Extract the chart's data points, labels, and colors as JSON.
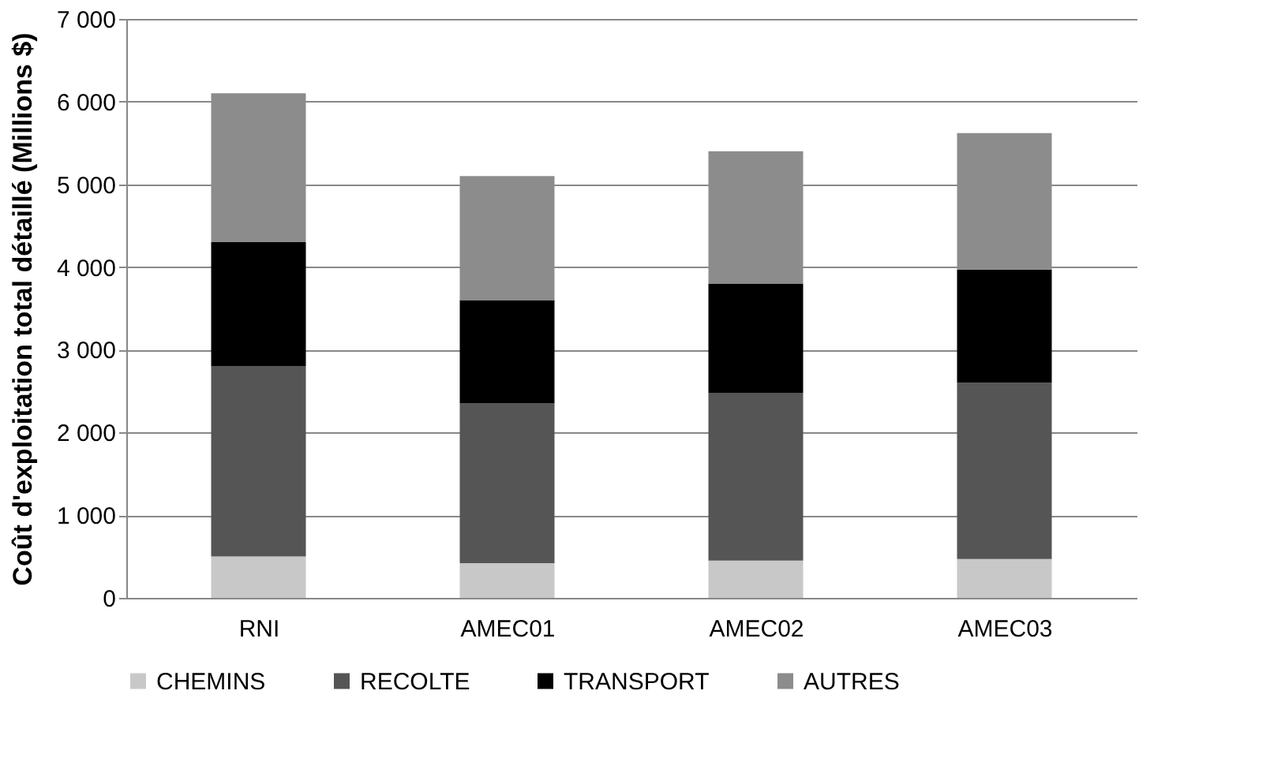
{
  "chart_data": {
    "type": "bar",
    "stacked": true,
    "ylabel": "Coût d'exploitation total détaillé (Millions $)",
    "categories": [
      "RNI",
      "AMEC01",
      "AMEC02",
      "AMEC03"
    ],
    "series": [
      {
        "name": "CHEMINS",
        "color": "#c8c8c8",
        "values": [
          500,
          420,
          450,
          470
        ]
      },
      {
        "name": "RECOLTE",
        "color": "#555555",
        "values": [
          2300,
          1930,
          2030,
          2130
        ]
      },
      {
        "name": "TRANSPORT",
        "color": "#000000",
        "values": [
          1500,
          1250,
          1320,
          1370
        ]
      },
      {
        "name": "AUTRES",
        "color": "#8c8c8c",
        "values": [
          1800,
          1500,
          1600,
          1650
        ]
      }
    ],
    "ylim": [
      0,
      7000
    ],
    "yticks": [
      0,
      {
        "value": 1000,
        "label": "1 000"
      },
      {
        "value": 2000,
        "label": "2 000"
      },
      {
        "value": 3000,
        "label": "3 000"
      },
      {
        "value": 4000,
        "label": "4 000"
      },
      {
        "value": 5000,
        "label": "5 000"
      },
      {
        "value": 6000,
        "label": "6 000"
      },
      {
        "value": 7000,
        "label": "7 000"
      }
    ],
    "grid": "y",
    "legend": "bottom"
  }
}
